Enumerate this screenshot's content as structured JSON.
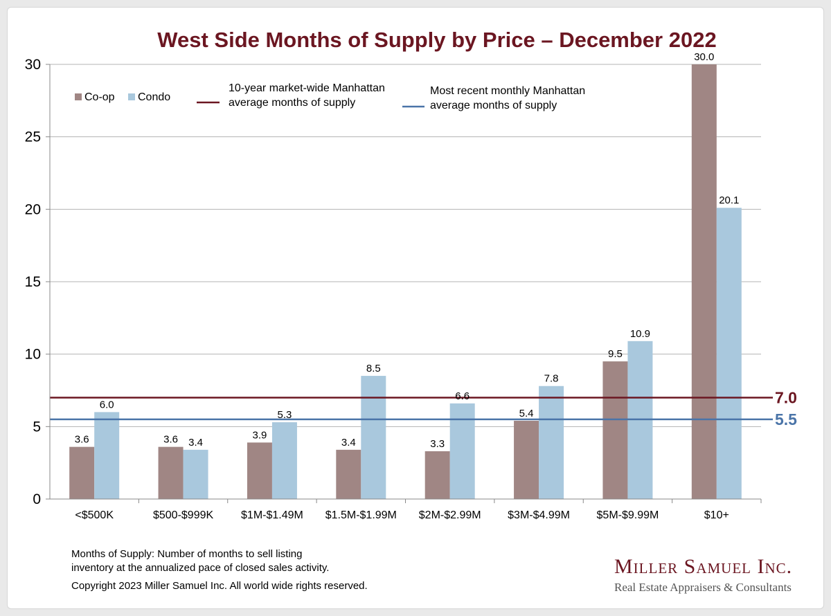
{
  "chart_data": {
    "type": "bar",
    "title": "West Side Months of Supply by Price – December 2022",
    "categories": [
      "<$500K",
      "$500-$999K",
      "$1M-$1.49M",
      "$1.5M-$1.99M",
      "$2M-$2.99M",
      "$3M-$4.99M",
      "$5M-$9.99M",
      "$10+"
    ],
    "series": [
      {
        "name": "Co-op",
        "color": "#a08684",
        "values": [
          3.6,
          3.6,
          3.9,
          3.4,
          3.3,
          5.4,
          9.5,
          30.0
        ]
      },
      {
        "name": "Condo",
        "color": "#a9c8dd",
        "values": [
          6.0,
          3.4,
          5.3,
          8.5,
          6.6,
          7.8,
          10.9,
          20.1
        ]
      }
    ],
    "ylim": [
      0,
      30
    ],
    "yticks": [
      0,
      5,
      10,
      15,
      20,
      25,
      30
    ],
    "grid": true,
    "legend_position": "top-left",
    "reference_lines": [
      {
        "name": "10-year market-wide Manhattan average months of supply",
        "legend_lines": [
          "10-year market-wide Manhattan",
          "average months of supply"
        ],
        "value": 7.0,
        "label": "7.0",
        "color": "#6b1621"
      },
      {
        "name": "Most recent monthly Manhattan average months of supply",
        "legend_lines": [
          "Most recent monthly Manhattan",
          "average months of supply"
        ],
        "value": 5.5,
        "label": "5.5",
        "color": "#4a74a8"
      }
    ]
  },
  "footer": {
    "definition_line1": "Months of Supply: Number of months to sell listing",
    "definition_line2": "inventory at the annualized pace of closed sales activity.",
    "copyright": "Copyright 2023 Miller Samuel Inc.  All world wide rights reserved."
  },
  "logo": {
    "name": "Miller Samuel Inc.",
    "tagline": "Real Estate Appraisers & Consultants"
  },
  "colors": {
    "title": "#6b1621",
    "gridline": "#b3b3b3",
    "background": "#ffffff"
  }
}
